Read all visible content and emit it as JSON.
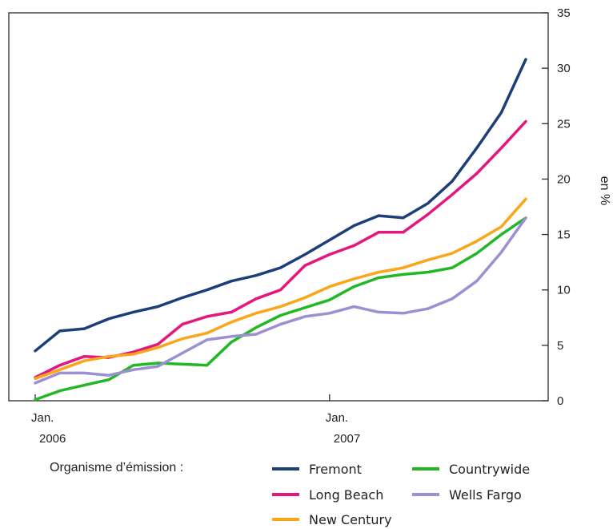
{
  "chart_data": {
    "type": "line",
    "ylabel": "en %",
    "ylim": [
      0,
      35
    ],
    "yticks": [
      0,
      5,
      10,
      15,
      20,
      25,
      30,
      35
    ],
    "x_range": [
      "2006-01",
      "2007-09"
    ],
    "x_tick_labels": [
      {
        "month": "Jan.",
        "year": "2006",
        "x": "2006-01"
      },
      {
        "month": "Jan.",
        "year": "2007",
        "x": "2007-01"
      }
    ],
    "x": [
      "2006-01",
      "2006-02",
      "2006-03",
      "2006-04",
      "2006-05",
      "2006-06",
      "2006-07",
      "2006-08",
      "2006-09",
      "2006-10",
      "2006-11",
      "2006-12",
      "2007-01",
      "2007-02",
      "2007-03",
      "2007-04",
      "2007-05",
      "2007-06",
      "2007-07",
      "2007-08",
      "2007-09"
    ],
    "legend_title": "Organisme d’émission :",
    "legend_placement": "bottom",
    "series": [
      {
        "name": "Fremont",
        "color": "#1c3f7a",
        "values": [
          4.5,
          6.3,
          6.5,
          7.4,
          8.0,
          8.5,
          9.3,
          10.0,
          10.8,
          11.3,
          12.0,
          13.2,
          14.5,
          15.8,
          16.7,
          16.5,
          17.8,
          19.8,
          22.8,
          26.0,
          30.8
        ]
      },
      {
        "name": "Long Beach",
        "color": "#e5177e",
        "values": [
          2.1,
          3.2,
          4.0,
          3.9,
          4.4,
          5.1,
          6.9,
          7.6,
          8.0,
          9.2,
          10.0,
          12.2,
          13.2,
          14.0,
          15.2,
          15.2,
          16.8,
          18.6,
          20.5,
          22.8,
          25.2
        ]
      },
      {
        "name": "New Century",
        "color": "#f9a61a",
        "values": [
          2.0,
          2.8,
          3.6,
          4.0,
          4.2,
          4.8,
          5.6,
          6.1,
          7.1,
          7.9,
          8.5,
          9.3,
          10.3,
          11.0,
          11.6,
          12.0,
          12.7,
          13.3,
          14.4,
          15.7,
          18.2
        ]
      },
      {
        "name": "Countrywide",
        "color": "#22b825",
        "values": [
          0.1,
          0.9,
          1.4,
          1.9,
          3.2,
          3.4,
          3.3,
          3.2,
          5.3,
          6.6,
          7.7,
          8.4,
          9.1,
          10.3,
          11.1,
          11.4,
          11.6,
          12.0,
          13.3,
          15.0,
          16.5
        ]
      },
      {
        "name": "Wells Fargo",
        "color": "#9d8fd1",
        "values": [
          1.6,
          2.5,
          2.5,
          2.3,
          2.8,
          3.1,
          4.3,
          5.5,
          5.8,
          6.0,
          6.9,
          7.6,
          7.9,
          8.5,
          8.0,
          7.9,
          8.3,
          9.2,
          10.8,
          13.4,
          16.5
        ]
      }
    ]
  }
}
